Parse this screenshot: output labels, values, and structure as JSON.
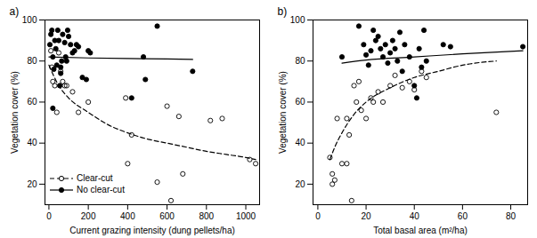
{
  "chart_data": [
    {
      "type": "scatter",
      "title": "a)",
      "x_label": "Current grazing intensity (dung pellets/ha)",
      "y_label": "Vegetation cover (%)",
      "xlim": [
        -20,
        1070
      ],
      "xticks": [
        0,
        200,
        400,
        600,
        800,
        1000
      ],
      "ylim": [
        10,
        100
      ],
      "yticks": [
        20,
        40,
        60,
        80,
        100
      ],
      "legend": "bottom-left",
      "series": [
        {
          "name": "Clear-cut",
          "color": "#000000",
          "marker": "open circle",
          "line_style": "dashed",
          "values": [
            [
              10,
              85
            ],
            [
              15,
              77
            ],
            [
              20,
              70
            ],
            [
              30,
              68
            ],
            [
              40,
              55
            ],
            [
              50,
              84
            ],
            [
              60,
              75
            ],
            [
              70,
              70
            ],
            [
              80,
              68
            ],
            [
              90,
              68
            ],
            [
              120,
              65
            ],
            [
              150,
              55
            ],
            [
              200,
              60
            ],
            [
              390,
              62
            ],
            [
              400,
              30
            ],
            [
              420,
              44
            ],
            [
              550,
              21
            ],
            [
              600,
              58
            ],
            [
              620,
              12
            ],
            [
              660,
              53
            ],
            [
              680,
              25
            ],
            [
              820,
              51
            ],
            [
              880,
              52
            ],
            [
              1020,
              32
            ],
            [
              1050,
              30
            ]
          ],
          "fit_x": [
            0,
            50,
            100,
            200,
            300,
            400,
            500,
            600,
            700,
            800,
            900,
            1000,
            1050
          ],
          "fit_values": [
            78,
            68,
            62,
            55,
            49,
            45,
            42,
            40,
            38,
            36,
            34.5,
            33,
            32
          ]
        },
        {
          "name": "No clear-cut",
          "color": "#000000",
          "marker": "filled circle",
          "line_style": "solid",
          "values": [
            [
              5,
              88
            ],
            [
              10,
              93
            ],
            [
              15,
              95
            ],
            [
              20,
              82
            ],
            [
              20,
              57
            ],
            [
              25,
              76
            ],
            [
              30,
              90
            ],
            [
              35,
              86
            ],
            [
              40,
              78
            ],
            [
              45,
              95
            ],
            [
              50,
              90
            ],
            [
              55,
              68
            ],
            [
              60,
              74
            ],
            [
              60,
              77
            ],
            [
              65,
              80
            ],
            [
              70,
              93
            ],
            [
              80,
              89
            ],
            [
              85,
              82
            ],
            [
              90,
              80
            ],
            [
              95,
              95
            ],
            [
              100,
              92
            ],
            [
              110,
              88
            ],
            [
              120,
              84
            ],
            [
              130,
              85
            ],
            [
              140,
              88
            ],
            [
              150,
              87
            ],
            [
              170,
              72
            ],
            [
              190,
              71
            ],
            [
              200,
              85
            ],
            [
              210,
              84
            ],
            [
              420,
              62
            ],
            [
              480,
              82
            ],
            [
              490,
              71
            ],
            [
              550,
              97
            ],
            [
              730,
              75
            ]
          ],
          "fit_x": [
            0,
            200,
            400,
            600,
            730
          ],
          "fit_values": [
            82,
            81.5,
            81.2,
            81,
            80.8
          ]
        }
      ]
    },
    {
      "type": "scatter",
      "title": "b)",
      "x_label": "Total basal area (m²/ha)",
      "y_label": "Vegetation cover (%)",
      "xlim": [
        -2,
        87
      ],
      "xticks": [
        0,
        20,
        40,
        60,
        80
      ],
      "ylim": [
        10,
        100
      ],
      "yticks": [
        20,
        40,
        60,
        80,
        100
      ],
      "series": [
        {
          "name": "Clear-cut",
          "color": "#000000",
          "marker": "open circle",
          "line_style": "dashed",
          "values": [
            [
              5,
              33
            ],
            [
              6,
              25
            ],
            [
              6,
              20
            ],
            [
              7,
              22
            ],
            [
              8,
              52
            ],
            [
              10,
              30
            ],
            [
              12,
              52
            ],
            [
              12,
              30
            ],
            [
              13,
              44
            ],
            [
              14,
              12
            ],
            [
              15,
              68
            ],
            [
              16,
              60
            ],
            [
              17,
              70
            ],
            [
              18,
              56
            ],
            [
              20,
              52
            ],
            [
              22,
              62
            ],
            [
              23,
              60
            ],
            [
              25,
              65
            ],
            [
              27,
              60
            ],
            [
              30,
              68
            ],
            [
              32,
              73
            ],
            [
              35,
              67
            ],
            [
              38,
              70
            ],
            [
              40,
              66
            ],
            [
              43,
              75
            ],
            [
              45,
              72
            ],
            [
              74,
              55
            ]
          ],
          "fit_x": [
            5,
            7,
            10,
            15,
            20,
            30,
            40,
            50,
            60,
            74
          ],
          "fit_values": [
            32,
            38,
            45,
            54,
            60,
            67,
            72,
            75,
            78,
            80
          ]
        },
        {
          "name": "No clear-cut",
          "color": "#000000",
          "marker": "filled circle",
          "line_style": "solid",
          "values": [
            [
              10,
              82
            ],
            [
              17,
              97
            ],
            [
              19,
              88
            ],
            [
              20,
              83
            ],
            [
              21,
              78
            ],
            [
              22,
              85
            ],
            [
              23,
              95
            ],
            [
              24,
              90
            ],
            [
              25,
              92
            ],
            [
              26,
              86
            ],
            [
              27,
              82
            ],
            [
              28,
              88
            ],
            [
              29,
              79
            ],
            [
              30,
              84
            ],
            [
              31,
              90
            ],
            [
              32,
              86
            ],
            [
              33,
              80
            ],
            [
              34,
              94
            ],
            [
              35,
              75
            ],
            [
              36,
              88
            ],
            [
              38,
              82
            ],
            [
              40,
              68
            ],
            [
              41,
              62
            ],
            [
              42,
              86
            ],
            [
              43,
              77
            ],
            [
              44,
              95
            ],
            [
              45,
              80
            ],
            [
              52,
              88
            ],
            [
              55,
              87
            ],
            [
              85,
              87
            ]
          ],
          "fit_x": [
            10,
            20,
            40,
            60,
            85
          ],
          "fit_values": [
            79,
            80.5,
            82,
            83.5,
            85
          ]
        }
      ]
    }
  ]
}
